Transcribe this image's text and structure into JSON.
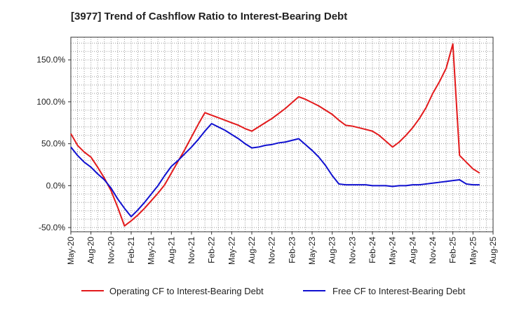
{
  "chart_data": {
    "type": "line",
    "title": "[3977]  Trend of Cashflow Ratio to Interest-Bearing Debt",
    "x_ticks": [
      "May-20",
      "Aug-20",
      "Nov-20",
      "Feb-21",
      "May-21",
      "Aug-21",
      "Nov-21",
      "Feb-22",
      "May-22",
      "Aug-22",
      "Nov-22",
      "Feb-23",
      "May-23",
      "Aug-23",
      "Nov-23",
      "Feb-24",
      "May-24",
      "Aug-24",
      "Nov-24",
      "Feb-25",
      "May-25",
      "Aug-25"
    ],
    "y_ticks": [
      "150.0%",
      "100.0%",
      "50.0%",
      "0.0%",
      "-50.0%"
    ],
    "y_tick_values": [
      150,
      100,
      50,
      0,
      -50
    ],
    "ylim": [
      -55,
      177
    ],
    "xlim_months": [
      0,
      63
    ],
    "grid": true,
    "legend_position": "bottom",
    "series": [
      {
        "name": "Operating CF to Interest-Bearing Debt",
        "color": "#e31a1c",
        "x": [
          0,
          1,
          2,
          3,
          4,
          5,
          6,
          7,
          8,
          9,
          10,
          11,
          12,
          13,
          14,
          15,
          16,
          17,
          18,
          19,
          20,
          21,
          22,
          23,
          24,
          25,
          26,
          27,
          28,
          29,
          30,
          31,
          32,
          33,
          34,
          35,
          36,
          37,
          38,
          39,
          40,
          41,
          42,
          43,
          44,
          45,
          46,
          47,
          48,
          49,
          50,
          51,
          52,
          53,
          54,
          55,
          56,
          57
        ],
        "values": [
          62,
          48,
          40,
          34,
          22,
          9,
          -6,
          -26,
          -48,
          -42,
          -35,
          -27,
          -18,
          -9,
          1,
          15,
          29,
          43,
          58,
          73,
          87,
          84,
          81,
          78,
          75,
          72,
          68,
          65,
          70,
          75,
          80,
          86,
          92,
          99,
          106,
          103,
          99,
          95,
          90,
          85,
          78,
          72,
          71,
          69,
          67,
          65,
          60,
          53,
          46,
          52,
          60,
          69,
          80,
          93,
          110,
          124,
          140,
          169
        ],
        "values_tail": {
          "x": [
            58,
            59,
            60,
            61
          ],
          "values": [
            36,
            28,
            20,
            15
          ]
        }
      },
      {
        "name": "Free CF to Interest-Bearing Debt",
        "color": "#1010d0",
        "x": [
          0,
          1,
          2,
          3,
          4,
          5,
          6,
          7,
          8,
          9,
          10,
          11,
          12,
          13,
          14,
          15,
          16,
          17,
          18,
          19,
          20,
          21,
          22,
          23,
          24,
          25,
          26,
          27,
          28,
          29,
          30,
          31,
          32,
          33,
          34,
          35,
          36,
          37,
          38,
          39,
          40,
          41,
          42,
          43,
          44,
          45,
          46,
          47,
          48,
          49,
          50,
          51,
          52,
          53,
          54,
          55,
          56,
          57,
          58,
          59,
          60,
          61
        ],
        "values": [
          46,
          36,
          28,
          22,
          14,
          7,
          -3,
          -16,
          -27,
          -37,
          -29,
          -20,
          -10,
          0,
          12,
          23,
          30,
          38,
          46,
          55,
          65,
          74,
          70,
          66,
          61,
          56,
          50,
          45,
          46,
          48,
          49,
          51,
          52,
          54,
          56,
          49,
          42,
          34,
          24,
          12,
          2,
          1,
          1,
          1,
          1,
          0,
          0,
          0,
          -1,
          0,
          0,
          1,
          1,
          2,
          3,
          4,
          5,
          6,
          7,
          2,
          1,
          1
        ]
      }
    ]
  }
}
